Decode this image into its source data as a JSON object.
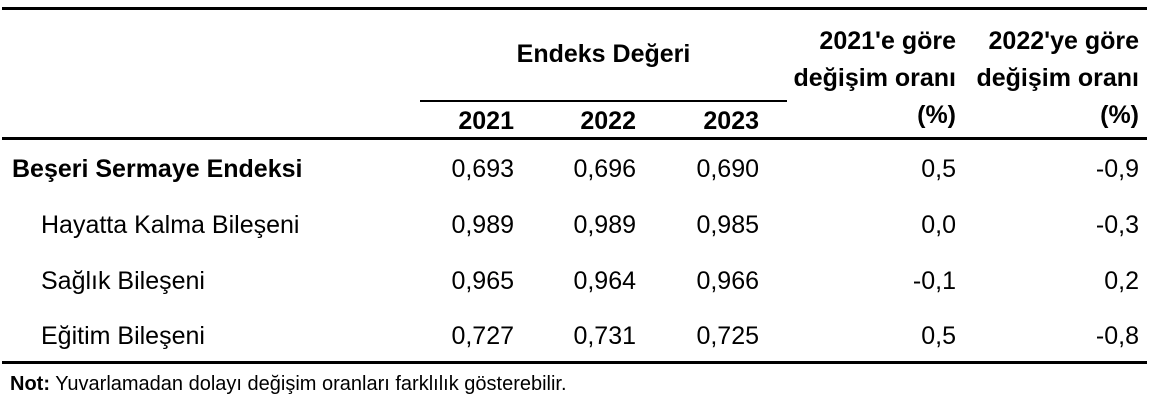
{
  "header": {
    "group_label": "Endeks Değeri",
    "years": [
      "2021",
      "2022",
      "2023"
    ],
    "pct_2021_lines": [
      "2021'e göre",
      "değişim oranı",
      "(%)"
    ],
    "pct_2022_lines": [
      "2022'ye göre",
      "değişim oranı",
      "(%)"
    ]
  },
  "rows": [
    {
      "label": "Beşeri Sermaye Endeksi",
      "values": [
        "0,693",
        "0,696",
        "0,690"
      ],
      "pct_2021": "0,5",
      "pct_2022": "-0,9"
    },
    {
      "label": "Hayatta Kalma Bileşeni",
      "values": [
        "0,989",
        "0,989",
        "0,985"
      ],
      "pct_2021": "0,0",
      "pct_2022": "-0,3"
    },
    {
      "label": "Sağlık Bileşeni",
      "values": [
        "0,965",
        "0,964",
        "0,966"
      ],
      "pct_2021": "-0,1",
      "pct_2022": "0,2"
    },
    {
      "label": "Eğitim Bileşeni",
      "values": [
        "0,727",
        "0,731",
        "0,725"
      ],
      "pct_2021": "0,5",
      "pct_2022": "-0,8"
    }
  ],
  "note": {
    "label": "Not:",
    "text": "Yuvarlamadan dolayı değişim oranları farklılık gösterebilir."
  },
  "colors": {
    "background": "#ffffff",
    "text": "#000000",
    "rule": "#000000"
  },
  "chart_data": {
    "type": "table",
    "columns": [
      "",
      "2021",
      "2022",
      "2023",
      "2021'e göre değişim oranı (%)",
      "2022'ye göre değişim oranı (%)"
    ],
    "rows": [
      [
        "Beşeri Sermaye Endeksi",
        "0,693",
        "0,696",
        "0,690",
        "0,5",
        "-0,9"
      ],
      [
        "Hayatta Kalma Bileşeni",
        "0,989",
        "0,989",
        "0,985",
        "0,0",
        "-0,3"
      ],
      [
        "Sağlık Bileşeni",
        "0,965",
        "0,964",
        "0,966",
        "-0,1",
        "0,2"
      ],
      [
        "Eğitim Bileşeni",
        "0,727",
        "0,731",
        "0,725",
        "0,5",
        "-0,8"
      ]
    ]
  }
}
